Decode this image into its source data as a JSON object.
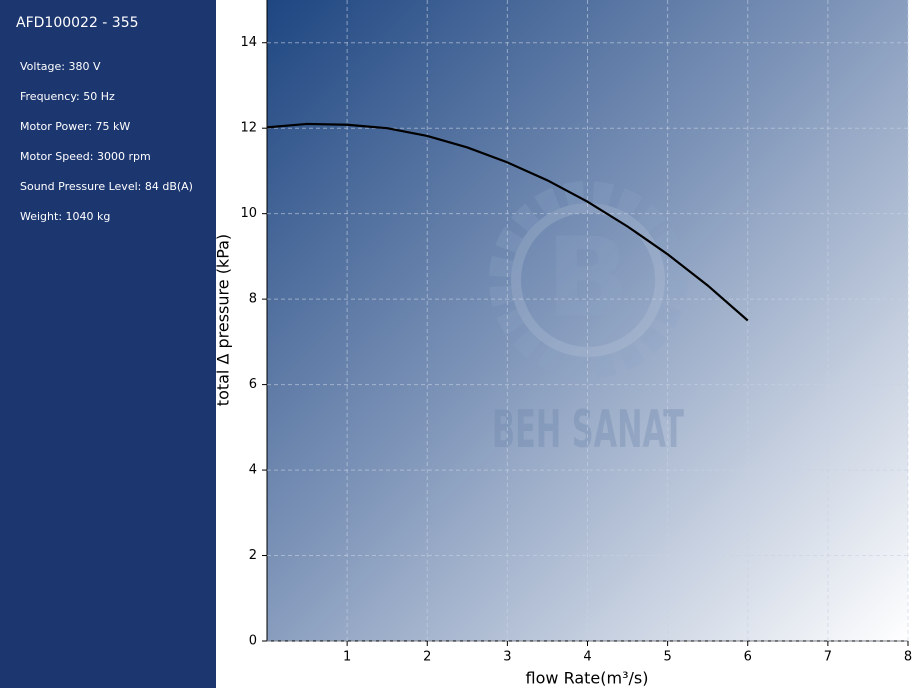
{
  "sidebar": {
    "title": "AFD100022 - 355",
    "specs": [
      "Voltage: 380 V",
      "Frequency: 50 Hz",
      "Motor Power: 75 kW",
      "Motor Speed: 3000 rpm",
      "Sound Pressure Level: 84 dB(A)",
      "Weight: 1040 kg"
    ]
  },
  "chart_data": {
    "type": "line",
    "x_label": "flow Rate(m³/s)",
    "y_label": "total Δ pressure (kPa)",
    "watermark": "BEH SANAT",
    "x": [
      0,
      0.5,
      1,
      1.5,
      2,
      2.5,
      3,
      3.5,
      4,
      4.5,
      5,
      5.5,
      6
    ],
    "values": [
      12.02,
      12.1,
      12.08,
      12.0,
      11.82,
      11.55,
      11.2,
      10.78,
      10.28,
      9.7,
      9.05,
      8.32,
      7.5
    ],
    "color": "#000000",
    "xlim": [
      0,
      8
    ],
    "xticks": [
      1,
      2,
      3,
      4,
      5,
      6,
      7,
      8
    ],
    "ylim": [
      0,
      15
    ],
    "yticks": [
      0,
      2,
      4,
      6,
      8,
      10,
      12,
      14
    ],
    "grid": true
  }
}
